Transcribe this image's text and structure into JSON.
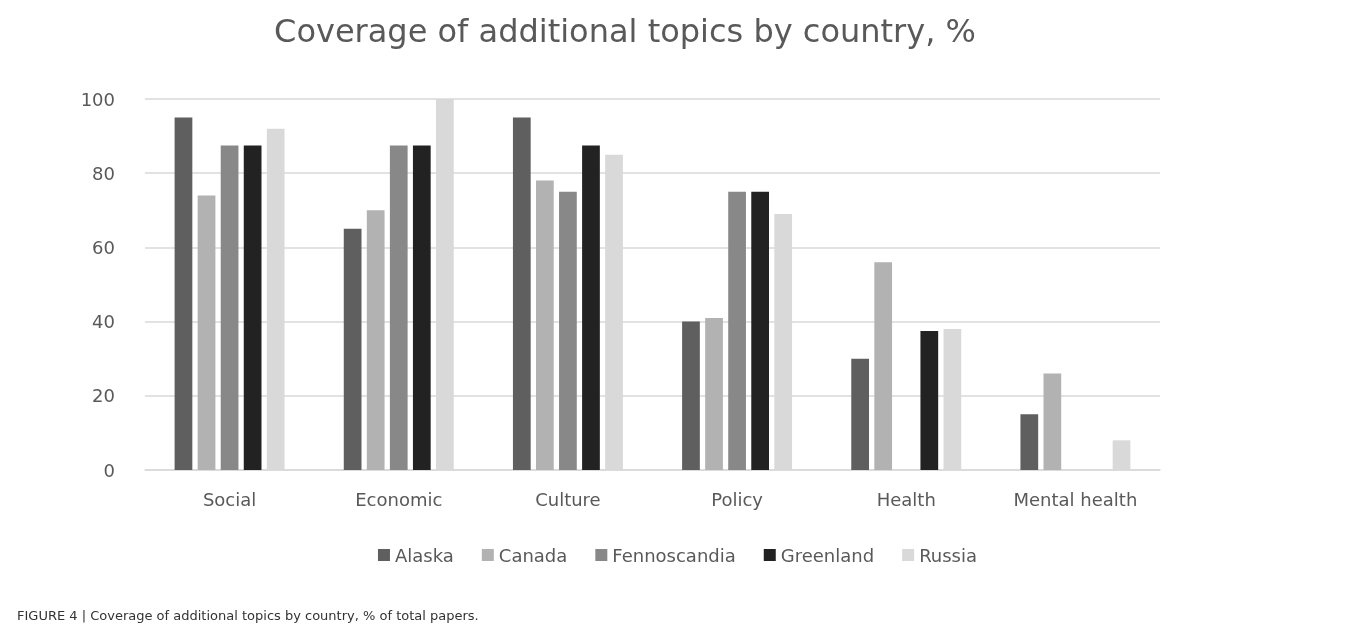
{
  "chart_data": {
    "type": "bar",
    "title": "Coverage of additional topics by country, %",
    "categories": [
      "Social",
      "Economic",
      "Culture",
      "Policy",
      "Health",
      "Mental health"
    ],
    "series": [
      {
        "name": "Alaska",
        "color": "#5f5f5f",
        "values": [
          95,
          65,
          95,
          40,
          30,
          15
        ]
      },
      {
        "name": "Canada",
        "color": "#b2b2b2",
        "values": [
          74,
          70,
          78,
          41,
          56,
          26
        ]
      },
      {
        "name": "Fennoscandia",
        "color": "#888888",
        "values": [
          87.5,
          87.5,
          75,
          75,
          0,
          0
        ]
      },
      {
        "name": "Greenland",
        "color": "#222222",
        "values": [
          87.5,
          87.5,
          87.5,
          75,
          37.5,
          0
        ]
      },
      {
        "name": "Russia",
        "color": "#d9d9d9",
        "values": [
          92,
          100,
          85,
          69,
          38,
          8
        ]
      }
    ],
    "ylim": [
      0,
      100
    ],
    "yticks": [
      0,
      20,
      40,
      60,
      80,
      100
    ],
    "grid": "y",
    "legend": "bottom",
    "annotations": [
      "FIGURE 4 | Coverage of additional topics by country, % of total papers."
    ]
  }
}
